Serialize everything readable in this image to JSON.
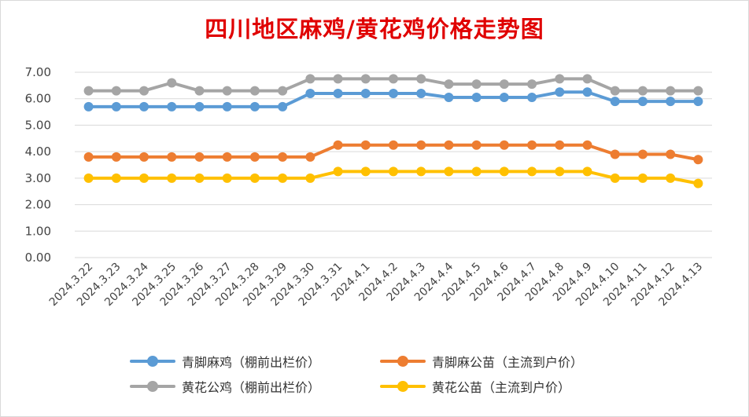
{
  "title": "四川地区麻鸡/黄花鸡价格走势图",
  "chart_data": {
    "type": "line",
    "categories": [
      "2024.3.22",
      "2024.3.23",
      "2024.3.24",
      "2024.3.25",
      "2024.3.26",
      "2024.3.27",
      "2024.3.28",
      "2024.3.29",
      "2024.3.30",
      "2024.3.31",
      "2024.4.1",
      "2024.4.2",
      "2024.4.3",
      "2024.4.4",
      "2024.4.5",
      "2024.4.6",
      "2024.4.7",
      "2024.4.8",
      "2024.4.9",
      "2024.4.10",
      "2024.4.11",
      "2024.4.12",
      "2024.4.13"
    ],
    "yticks": [
      "0.00",
      "1.00",
      "2.00",
      "3.00",
      "4.00",
      "5.00",
      "6.00",
      "7.00"
    ],
    "ylim": [
      0,
      7
    ],
    "grid": true,
    "legend_position": "bottom",
    "series": [
      {
        "name": "青脚麻鸡（棚前出栏价）",
        "color": "#5b9bd5",
        "values": [
          5.7,
          5.7,
          5.7,
          5.7,
          5.7,
          5.7,
          5.7,
          5.7,
          6.2,
          6.2,
          6.2,
          6.2,
          6.2,
          6.05,
          6.05,
          6.05,
          6.05,
          6.25,
          6.25,
          5.9,
          5.9,
          5.9,
          5.9
        ]
      },
      {
        "name": "青脚麻公苗（主流到户价）",
        "color": "#ed7d31",
        "values": [
          3.8,
          3.8,
          3.8,
          3.8,
          3.8,
          3.8,
          3.8,
          3.8,
          3.8,
          4.25,
          4.25,
          4.25,
          4.25,
          4.25,
          4.25,
          4.25,
          4.25,
          4.25,
          4.25,
          3.9,
          3.9,
          3.9,
          3.7
        ]
      },
      {
        "name": "黄花公鸡（棚前出栏价）",
        "color": "#a5a5a5",
        "values": [
          6.3,
          6.3,
          6.3,
          6.6,
          6.3,
          6.3,
          6.3,
          6.3,
          6.75,
          6.75,
          6.75,
          6.75,
          6.75,
          6.55,
          6.55,
          6.55,
          6.55,
          6.75,
          6.75,
          6.3,
          6.3,
          6.3,
          6.3
        ]
      },
      {
        "name": "黄花公苗（主流到户价）",
        "color": "#ffc000",
        "values": [
          3.0,
          3.0,
          3.0,
          3.0,
          3.0,
          3.0,
          3.0,
          3.0,
          3.0,
          3.25,
          3.25,
          3.25,
          3.25,
          3.25,
          3.25,
          3.25,
          3.25,
          3.25,
          3.25,
          3.0,
          3.0,
          3.0,
          2.8
        ]
      }
    ]
  }
}
